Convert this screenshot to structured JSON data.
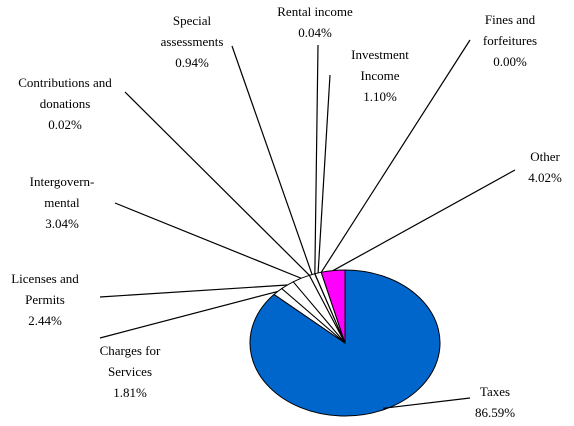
{
  "chart_data": {
    "type": "pie",
    "categories": [
      "Taxes",
      "Charges for Services",
      "Licenses and Permits",
      "Intergovern-mental",
      "Contributions and donations",
      "Special assessments",
      "Rental income",
      "Investment Income",
      "Fines and forfeitures",
      "Other"
    ],
    "values": [
      86.59,
      1.81,
      2.44,
      3.04,
      0.02,
      0.94,
      0.04,
      1.1,
      0.0,
      4.02
    ],
    "value_labels": [
      "86.59%",
      "1.81%",
      "2.44%",
      "3.04%",
      "0.02%",
      "0.94%",
      "0.04%",
      "1.10%",
      "0.00%",
      "4.02%"
    ],
    "colors": [
      "#0066cc",
      "#ffffff",
      "#ffffff",
      "#ffffff",
      "#ffffff",
      "#ffffff",
      "#ffffff",
      "#ffffff",
      "#ffffff",
      "#ff00ff"
    ]
  }
}
